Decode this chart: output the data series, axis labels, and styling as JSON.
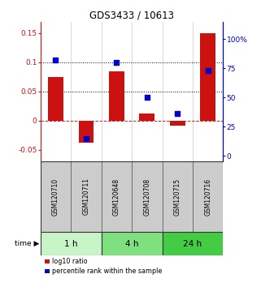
{
  "title": "GDS3433 / 10613",
  "samples": [
    "GSM120710",
    "GSM120711",
    "GSM120648",
    "GSM120708",
    "GSM120715",
    "GSM120716"
  ],
  "log10_ratio": [
    0.075,
    -0.038,
    0.085,
    0.012,
    -0.008,
    0.15
  ],
  "percentile_rank": [
    82,
    15,
    80,
    50,
    36,
    73
  ],
  "time_groups": [
    {
      "label": "1 h",
      "start": 0,
      "end": 2,
      "color": "#c8f5c8"
    },
    {
      "label": "4 h",
      "start": 2,
      "end": 4,
      "color": "#7ee07e"
    },
    {
      "label": "24 h",
      "start": 4,
      "end": 6,
      "color": "#44cc44"
    }
  ],
  "bar_color": "#cc1111",
  "dot_color": "#0000cc",
  "ylim_left": [
    -0.07,
    0.17
  ],
  "ylim_right": [
    -5,
    115
  ],
  "yticks_left": [
    -0.05,
    0.0,
    0.05,
    0.1,
    0.15
  ],
  "yticks_left_labels": [
    "-0.05",
    "0",
    "0.05",
    "0.1",
    "0.15"
  ],
  "yticks_right": [
    0,
    25,
    50,
    75,
    100
  ],
  "yticks_right_labels": [
    "0",
    "25",
    "50",
    "75",
    "100%"
  ],
  "hlines": [
    0.05,
    0.1
  ],
  "zero_line_color": "#cc2222",
  "sample_box_color": "#cccccc",
  "sample_box_border": "#666666"
}
